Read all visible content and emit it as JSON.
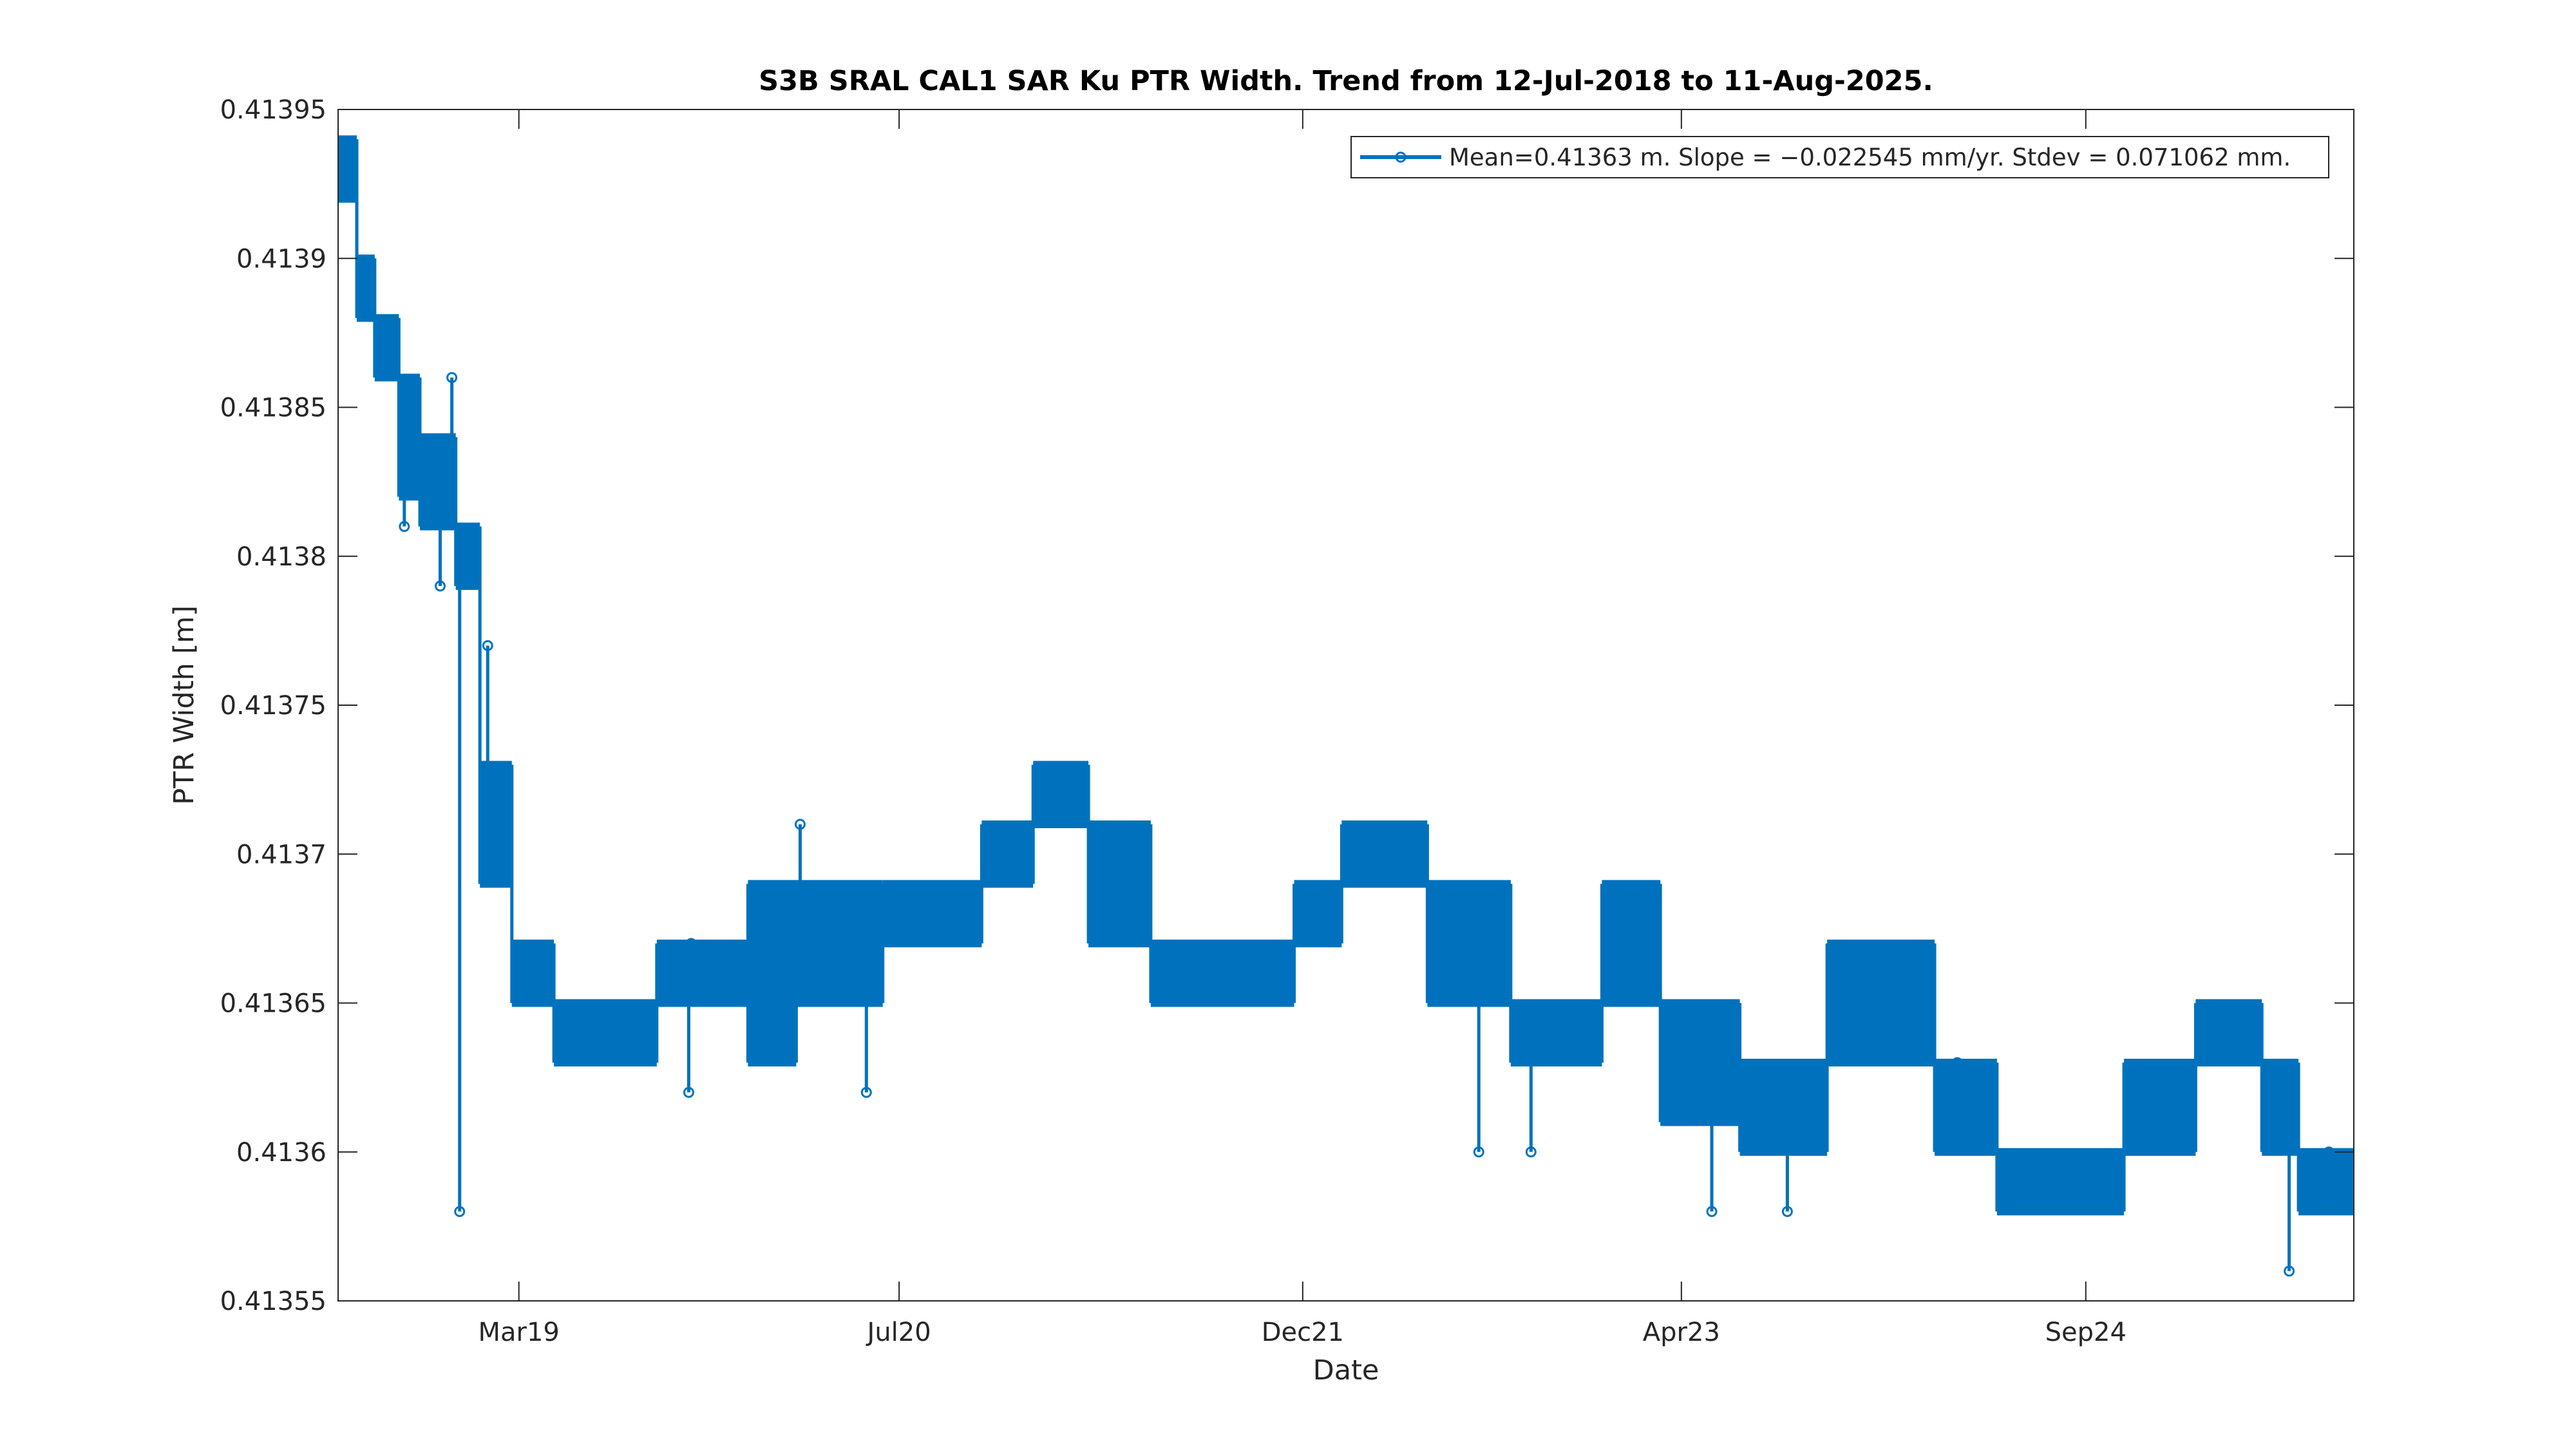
{
  "chart_data": {
    "type": "line",
    "title": "S3B SRAL CAL1 SAR Ku PTR Width. Trend from 12-Jul-2018 to 11-Aug-2025.",
    "xlabel": "Date",
    "ylabel": "PTR Width [m]",
    "ylim": [
      0.41355,
      0.41395
    ],
    "xlim": [
      "2018-07-12",
      "2025-08-11"
    ],
    "yticks": [
      0.41355,
      0.4136,
      0.41365,
      0.4137,
      0.41375,
      0.4138,
      0.41385,
      0.4139,
      0.41395
    ],
    "ytick_labels": [
      "0.41355",
      "0.4136",
      "0.41365",
      "0.4137",
      "0.41375",
      "0.4138",
      "0.41385",
      "0.4139",
      "0.41395"
    ],
    "xticks": [
      {
        "label": "Mar19",
        "date": "2019-03-01"
      },
      {
        "label": "Jul20",
        "date": "2020-07-01"
      },
      {
        "label": "Dec21",
        "date": "2021-12-01"
      },
      {
        "label": "Apr23",
        "date": "2023-04-01"
      },
      {
        "label": "Sep24",
        "date": "2024-09-01"
      }
    ],
    "grid": false,
    "legend_placement": "top-right",
    "series": [
      {
        "name": "Mean=0.41363 m. Slope = −0.022545 mm/yr. Stdev = 0.071062 mm.",
        "color": "#0072BD",
        "marker": "circle",
        "bands": [
          {
            "start": "2018-07-12",
            "end": "2018-08-05",
            "low": 0.41392,
            "high": 0.41394
          },
          {
            "start": "2018-08-05",
            "end": "2018-08-28",
            "low": 0.41388,
            "high": 0.4139
          },
          {
            "start": "2018-08-28",
            "end": "2018-09-28",
            "low": 0.41386,
            "high": 0.41388
          },
          {
            "start": "2018-09-28",
            "end": "2018-10-25",
            "low": 0.41382,
            "high": 0.41386
          },
          {
            "start": "2018-10-25",
            "end": "2018-12-10",
            "low": 0.41381,
            "high": 0.41384
          },
          {
            "start": "2018-12-10",
            "end": "2019-01-10",
            "low": 0.41379,
            "high": 0.41381
          },
          {
            "start": "2019-01-10",
            "end": "2019-02-20",
            "low": 0.41369,
            "high": 0.41373
          },
          {
            "start": "2019-02-20",
            "end": "2019-04-15",
            "low": 0.41365,
            "high": 0.41367
          },
          {
            "start": "2019-04-15",
            "end": "2019-08-25",
            "low": 0.41363,
            "high": 0.41365
          },
          {
            "start": "2019-08-25",
            "end": "2019-12-20",
            "low": 0.41365,
            "high": 0.41367
          },
          {
            "start": "2019-12-20",
            "end": "2020-02-20",
            "low": 0.41363,
            "high": 0.41369
          },
          {
            "start": "2020-02-20",
            "end": "2020-06-10",
            "low": 0.41365,
            "high": 0.41369
          },
          {
            "start": "2020-06-10",
            "end": "2020-10-15",
            "low": 0.41367,
            "high": 0.41369
          },
          {
            "start": "2020-10-15",
            "end": "2020-12-20",
            "low": 0.41369,
            "high": 0.41371
          },
          {
            "start": "2020-12-20",
            "end": "2021-03-01",
            "low": 0.41371,
            "high": 0.41373
          },
          {
            "start": "2021-03-01",
            "end": "2021-05-20",
            "low": 0.41367,
            "high": 0.41371
          },
          {
            "start": "2021-05-20",
            "end": "2021-11-20",
            "low": 0.41365,
            "high": 0.41367
          },
          {
            "start": "2021-11-20",
            "end": "2022-01-20",
            "low": 0.41367,
            "high": 0.41369
          },
          {
            "start": "2022-01-20",
            "end": "2022-05-10",
            "low": 0.41369,
            "high": 0.41371
          },
          {
            "start": "2022-05-10",
            "end": "2022-08-25",
            "low": 0.41365,
            "high": 0.41369
          },
          {
            "start": "2022-08-25",
            "end": "2022-12-20",
            "low": 0.41363,
            "high": 0.41365
          },
          {
            "start": "2022-12-20",
            "end": "2023-03-05",
            "low": 0.41365,
            "high": 0.41369
          },
          {
            "start": "2023-03-05",
            "end": "2023-06-15",
            "low": 0.41361,
            "high": 0.41365
          },
          {
            "start": "2023-06-15",
            "end": "2023-10-05",
            "low": 0.4136,
            "high": 0.41363
          },
          {
            "start": "2023-10-05",
            "end": "2024-02-20",
            "low": 0.41363,
            "high": 0.41367
          },
          {
            "start": "2024-02-20",
            "end": "2024-05-10",
            "low": 0.4136,
            "high": 0.41363
          },
          {
            "start": "2024-05-10",
            "end": "2024-10-20",
            "low": 0.41358,
            "high": 0.4136
          },
          {
            "start": "2024-10-20",
            "end": "2025-01-20",
            "low": 0.4136,
            "high": 0.41363
          },
          {
            "start": "2025-01-20",
            "end": "2025-04-15",
            "low": 0.41363,
            "high": 0.41365
          },
          {
            "start": "2025-04-15",
            "end": "2025-06-01",
            "low": 0.4136,
            "high": 0.41363
          },
          {
            "start": "2025-06-01",
            "end": "2025-08-11",
            "low": 0.41358,
            "high": 0.4136
          }
        ],
        "outliers": [
          {
            "date": "2018-10-05",
            "value": 0.41381
          },
          {
            "date": "2018-11-20",
            "value": 0.41379
          },
          {
            "date": "2018-12-05",
            "value": 0.41386
          },
          {
            "date": "2018-12-15",
            "value": 0.41358
          },
          {
            "date": "2019-01-20",
            "value": 0.41377
          },
          {
            "date": "2019-10-05",
            "value": 0.41362
          },
          {
            "date": "2019-10-08",
            "value": 0.41367
          },
          {
            "date": "2020-02-25",
            "value": 0.41371
          },
          {
            "date": "2020-05-20",
            "value": 0.41362
          },
          {
            "date": "2022-07-15",
            "value": 0.4136
          },
          {
            "date": "2022-09-20",
            "value": 0.4136
          },
          {
            "date": "2023-04-25",
            "value": 0.41362
          },
          {
            "date": "2023-05-10",
            "value": 0.41358
          },
          {
            "date": "2023-08-15",
            "value": 0.41358
          },
          {
            "date": "2024-03-20",
            "value": 0.41363
          },
          {
            "date": "2025-05-20",
            "value": 0.41356
          },
          {
            "date": "2025-07-10",
            "value": 0.4136
          }
        ]
      }
    ]
  }
}
